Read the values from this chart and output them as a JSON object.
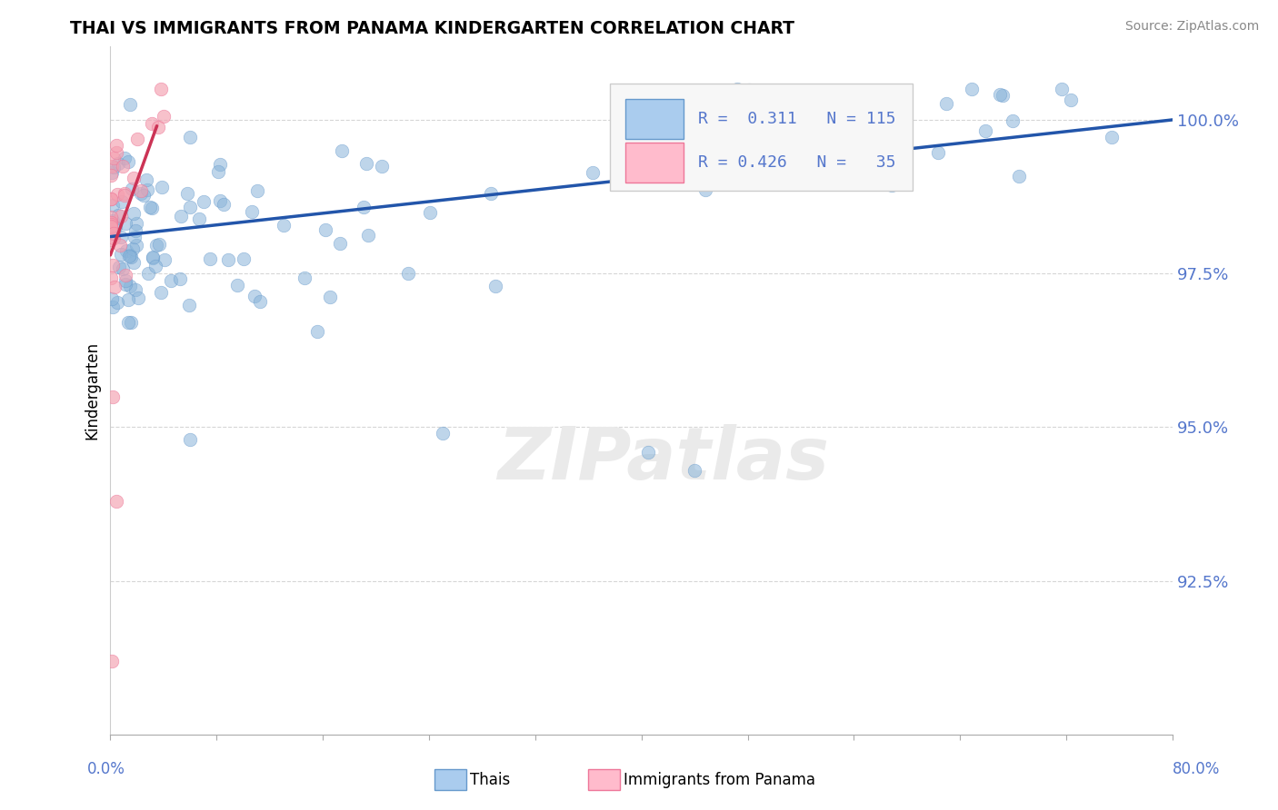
{
  "title": "THAI VS IMMIGRANTS FROM PANAMA KINDERGARTEN CORRELATION CHART",
  "source": "Source: ZipAtlas.com",
  "ylabel": "Kindergarten",
  "xlim": [
    0.0,
    80.0
  ],
  "ylim": [
    90.0,
    101.2
  ],
  "yticks": [
    92.5,
    95.0,
    97.5,
    100.0
  ],
  "ytick_labels": [
    "92.5%",
    "95.0%",
    "97.5%",
    "100.0%"
  ],
  "blue_color": "#89B4D9",
  "pink_color": "#F4A0B0",
  "blue_line_color": "#2255AA",
  "pink_line_color": "#CC3355",
  "blue_edge_color": "#6699CC",
  "pink_edge_color": "#EE7799",
  "legend_blue_fill": "#AACCEE",
  "legend_pink_fill": "#FFBBCC",
  "watermark_color": "#EAEAEA",
  "grid_color": "#CCCCCC",
  "tick_label_color": "#5577CC",
  "axis_label_color": "#5577CC",
  "source_color": "#888888",
  "blue_trend_x0": 0.0,
  "blue_trend_y0": 98.1,
  "blue_trend_x1": 80.0,
  "blue_trend_y1": 100.0,
  "pink_trend_x0": 0.0,
  "pink_trend_y0": 97.8,
  "pink_trend_x1": 3.5,
  "pink_trend_y1": 99.9
}
